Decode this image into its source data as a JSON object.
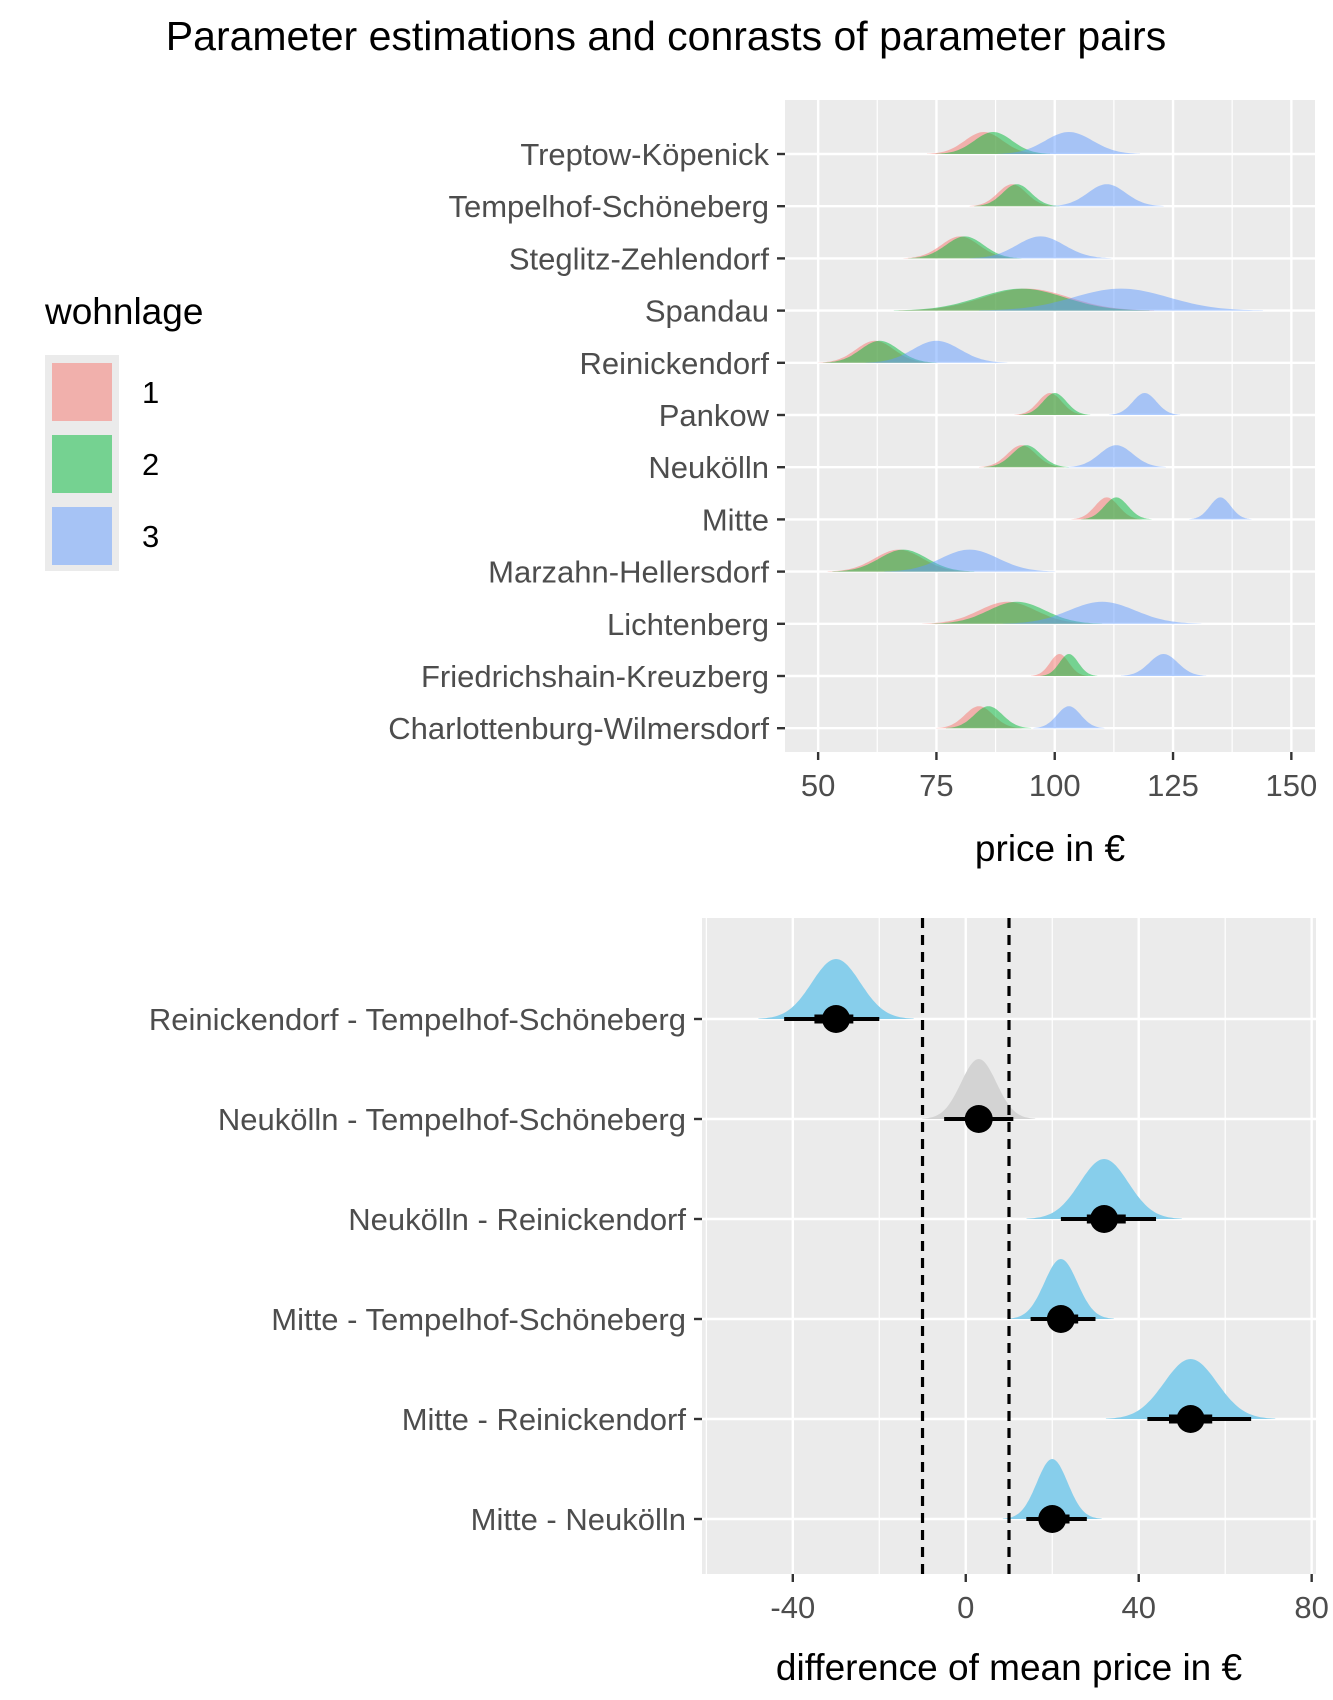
{
  "figure": {
    "title": "Parameter estimations and conrasts of parameter pairs"
  },
  "chart_data": [
    {
      "type": "ridgeline-density",
      "xlabel": "price in €",
      "ylabel": "",
      "xlim": [
        43,
        155
      ],
      "x_ticks": [
        50,
        75,
        100,
        125,
        150
      ],
      "grid": true,
      "legend": {
        "title": "wohnlage",
        "position": "left",
        "entries": [
          {
            "label": "1",
            "color": "#F8766D"
          },
          {
            "label": "2",
            "color": "#00BA38"
          },
          {
            "label": "3",
            "color": "#619CFF"
          }
        ]
      },
      "categories": [
        "Treptow-Köpenick",
        "Tempelhof-Schöneberg",
        "Steglitz-Zehlendorf",
        "Spandau",
        "Reinickendorf",
        "Pankow",
        "Neukölln",
        "Mitte",
        "Marzahn-Hellersdorf",
        "Lichtenberg",
        "Friedrichshain-Kreuzberg",
        "Charlottenburg-Wilmersdorf"
      ],
      "series": [
        {
          "name": "1",
          "color": "#F8766D",
          "centers": [
            85,
            91,
            80,
            94,
            62,
            99,
            93,
            111,
            67,
            90,
            101,
            84
          ],
          "sds": [
            4,
            3,
            4,
            9,
            4,
            2.5,
            3,
            2.5,
            5,
            6,
            2,
            3
          ]
        },
        {
          "name": "2",
          "color": "#00BA38",
          "centers": [
            87,
            92,
            81,
            93,
            63,
            100,
            94,
            113,
            68,
            92,
            103,
            86
          ],
          "sds": [
            4,
            3,
            4,
            9,
            4,
            2.5,
            3,
            2.5,
            5,
            6,
            2,
            3
          ]
        },
        {
          "name": "3",
          "color": "#619CFF",
          "centers": [
            103,
            111,
            97,
            114,
            75,
            119,
            113,
            135,
            82,
            110,
            123,
            103
          ],
          "sds": [
            5,
            4,
            5,
            10,
            5,
            2.5,
            3.5,
            2.2,
            6,
            7,
            3,
            2.5
          ]
        }
      ]
    },
    {
      "type": "halfeye-interval",
      "xlabel": "difference of mean price in €",
      "ylabel": "",
      "xlim": [
        -61,
        81
      ],
      "x_ticks": [
        -40,
        0,
        40,
        80
      ],
      "reference_lines": [
        -10,
        10
      ],
      "grid": true,
      "categories": [
        "Reinickendorf - Tempelhof-Schöneberg",
        "Neukölln - Tempelhof-Schöneberg",
        "Neukölln - Reinickendorf",
        "Mitte - Tempelhof-Schöneberg",
        "Mitte - Reinickendorf",
        "Mitte - Neukölln"
      ],
      "point_estimates": [
        -30,
        3,
        32,
        22,
        52,
        20
      ],
      "interval_66": [
        [
          -35,
          -26
        ],
        [
          0,
          5
        ],
        [
          28,
          37
        ],
        [
          19,
          26
        ],
        [
          47,
          57
        ],
        [
          17,
          24
        ]
      ],
      "interval_95": [
        [
          -42,
          -20
        ],
        [
          -5,
          11
        ],
        [
          22,
          44
        ],
        [
          15,
          30
        ],
        [
          42,
          66
        ],
        [
          14,
          28
        ]
      ],
      "slab_colors": [
        "#87CEEB",
        "#D3D3D3",
        "#87CEEB",
        "#87CEEB",
        "#87CEEB",
        "#87CEEB"
      ]
    }
  ]
}
